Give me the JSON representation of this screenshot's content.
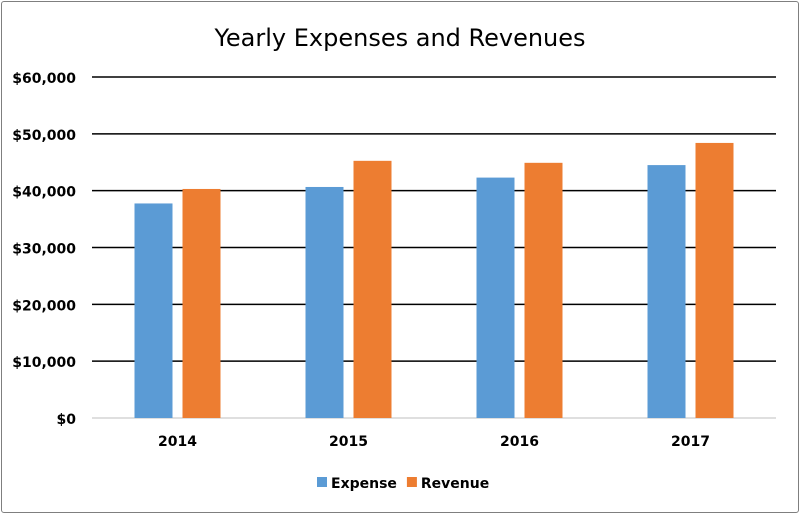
{
  "chart_data": {
    "type": "bar",
    "title": "Yearly Expenses and Revenues",
    "categories": [
      "2014",
      "2015",
      "2016",
      "2017"
    ],
    "series": [
      {
        "name": "Expense",
        "color": "#5b9bd5",
        "values": [
          37750,
          40650,
          42300,
          44500
        ]
      },
      {
        "name": "Revenue",
        "color": "#ed7d31",
        "values": [
          40300,
          45250,
          44900,
          48400
        ]
      }
    ],
    "ylim": [
      0,
      60000
    ],
    "yticks": [
      0,
      10000,
      20000,
      30000,
      40000,
      50000,
      60000
    ],
    "ytick_labels": [
      "$0",
      "$10,000",
      "$20,000",
      "$30,000",
      "$40,000",
      "$50,000",
      "$60,000"
    ],
    "grid": true,
    "legend": "bottom",
    "xlabel": "",
    "ylabel": ""
  }
}
